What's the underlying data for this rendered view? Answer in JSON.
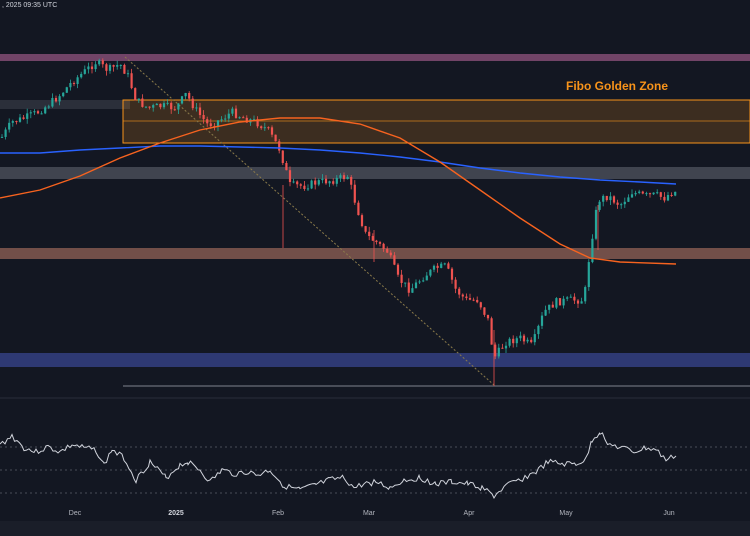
{
  "header": {
    "timestamp": ", 2025 09:35 UTC"
  },
  "annotations": {
    "fibo_zone": "Fibo Golden Zone"
  },
  "colors": {
    "background": "#131722",
    "up": "#26a69a",
    "down": "#ef5350",
    "ma_short": "#2962ff",
    "ma_long": "#f7631f",
    "fib_zone": "#f7931a",
    "rsi": "#d1d4dc"
  },
  "chart_data": {
    "type": "candlestick",
    "x_tick_labels": [
      "Dec",
      "2025",
      "Feb",
      "Mar",
      "Apr",
      "May",
      "Jun"
    ],
    "price_zones": [
      {
        "kind": "resistance",
        "color": "#c06aa0"
      },
      {
        "kind": "resistance",
        "color": "#b7bcc7"
      },
      {
        "kind": "support",
        "color": "#d28770"
      },
      {
        "kind": "support",
        "color": "#4a5cc4"
      }
    ],
    "ma_short_trend": [
      "down",
      "flat",
      "down"
    ],
    "ma_long_trend": [
      "up",
      "peak",
      "down"
    ],
    "rsi_panel": {
      "levels": [
        70,
        50,
        30
      ]
    }
  }
}
